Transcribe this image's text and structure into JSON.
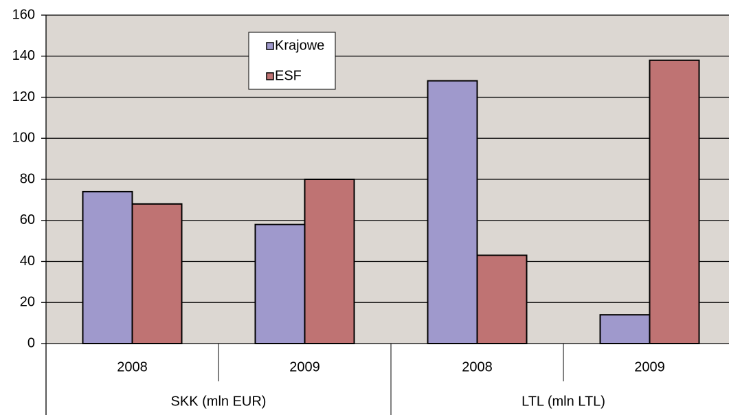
{
  "chart_data": {
    "type": "bar",
    "category_groups": [
      {
        "name": "SKK (mln EUR)",
        "categories": [
          "2008",
          "2009"
        ]
      },
      {
        "name": "LTL (mln LTL)",
        "categories": [
          "2008",
          "2009"
        ]
      }
    ],
    "series": [
      {
        "name": "Krajowe",
        "color": "#9f99cc",
        "values": [
          74,
          58,
          128,
          14
        ]
      },
      {
        "name": "ESF",
        "color": "#bf7373",
        "values": [
          68,
          80,
          43,
          138
        ]
      }
    ],
    "ylim": [
      0,
      160
    ],
    "yticks": [
      0,
      20,
      40,
      60,
      80,
      100,
      120,
      140,
      160
    ],
    "grid": true,
    "legend": "top",
    "background": "#dcd7d2"
  }
}
